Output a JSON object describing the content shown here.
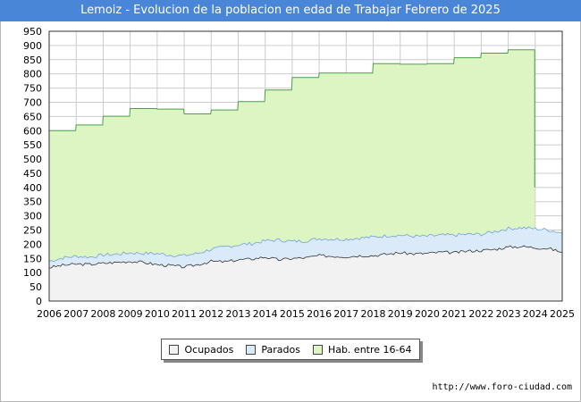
{
  "title": "Lemoiz - Evolucion de la poblacion en edad de Trabajar Febrero de 2025",
  "watermark": "FORO-CIUDAD.COM",
  "source": "http://www.foro-ciudad.com",
  "legend": {
    "ocupados": "Ocupados",
    "parados": "Parados",
    "hab": "Hab. entre 16-64"
  },
  "colors": {
    "hab_fill": "#ddf5c3",
    "hab_line": "#4aa04a",
    "parados_fill": "#dbeaf8",
    "parados_line": "#6ea2dc",
    "ocupados_fill": "#f2f2f2",
    "ocupados_line": "#333333",
    "grid": "#cccccc",
    "title_bg": "#4a86d8"
  },
  "chart_data": {
    "type": "area",
    "title": "Lemoiz - Evolucion de la poblacion en edad de Trabajar Febrero de 2025",
    "xlabel": "",
    "ylabel": "",
    "xlim": [
      2006,
      2025
    ],
    "ylim": [
      0,
      950
    ],
    "y_ticks": [
      0,
      50,
      100,
      150,
      200,
      250,
      300,
      350,
      400,
      450,
      500,
      550,
      600,
      650,
      700,
      750,
      800,
      850,
      900,
      950
    ],
    "x_ticks": [
      2006,
      2007,
      2008,
      2009,
      2010,
      2011,
      2012,
      2013,
      2014,
      2015,
      2016,
      2017,
      2018,
      2019,
      2020,
      2021,
      2022,
      2023,
      2024,
      2025
    ],
    "grid": true,
    "legend_position": "bottom",
    "series": [
      {
        "name": "Hab. entre 16-64",
        "x": [
          2006,
          2007,
          2008,
          2009,
          2010,
          2011,
          2012,
          2013,
          2014,
          2015,
          2016,
          2017,
          2018,
          2019,
          2020,
          2021,
          2022,
          2023,
          2024
        ],
        "values": [
          600,
          620,
          651,
          678,
          676,
          659,
          673,
          702,
          743,
          787,
          803,
          803,
          836,
          834,
          836,
          857,
          873,
          885,
          400
        ]
      },
      {
        "name": "Parados",
        "x": [
          2006,
          2006.5,
          2007,
          2007.5,
          2008,
          2008.5,
          2009,
          2009.5,
          2010,
          2010.5,
          2011,
          2011.5,
          2012,
          2012.5,
          2013,
          2013.5,
          2014,
          2014.5,
          2015,
          2015.5,
          2016,
          2016.5,
          2017,
          2017.5,
          2018,
          2018.5,
          2019,
          2019.5,
          2020,
          2020.5,
          2021,
          2021.5,
          2022,
          2022.5,
          2023,
          2023.5,
          2024,
          2024.5,
          2025
        ],
        "values": [
          140,
          152,
          158,
          155,
          162,
          165,
          170,
          168,
          167,
          162,
          160,
          168,
          182,
          190,
          198,
          202,
          212,
          215,
          210,
          212,
          220,
          218,
          218,
          222,
          225,
          230,
          232,
          228,
          228,
          232,
          232,
          235,
          235,
          245,
          255,
          258,
          255,
          250,
          240
        ]
      },
      {
        "name": "Ocupados",
        "x": [
          2006,
          2006.5,
          2007,
          2007.5,
          2008,
          2008.5,
          2009,
          2009.5,
          2010,
          2010.5,
          2011,
          2011.5,
          2012,
          2012.5,
          2013,
          2013.5,
          2014,
          2014.5,
          2015,
          2015.5,
          2016,
          2016.5,
          2017,
          2017.5,
          2018,
          2018.5,
          2019,
          2019.5,
          2020,
          2020.5,
          2021,
          2021.5,
          2022,
          2022.5,
          2023,
          2023.5,
          2024,
          2024.5,
          2025
        ],
        "values": [
          118,
          126,
          130,
          129,
          133,
          136,
          140,
          136,
          128,
          125,
          120,
          128,
          140,
          138,
          145,
          148,
          155,
          145,
          150,
          152,
          160,
          158,
          156,
          160,
          160,
          165,
          170,
          166,
          168,
          172,
          170,
          176,
          178,
          182,
          190,
          192,
          188,
          185,
          172
        ]
      }
    ]
  }
}
